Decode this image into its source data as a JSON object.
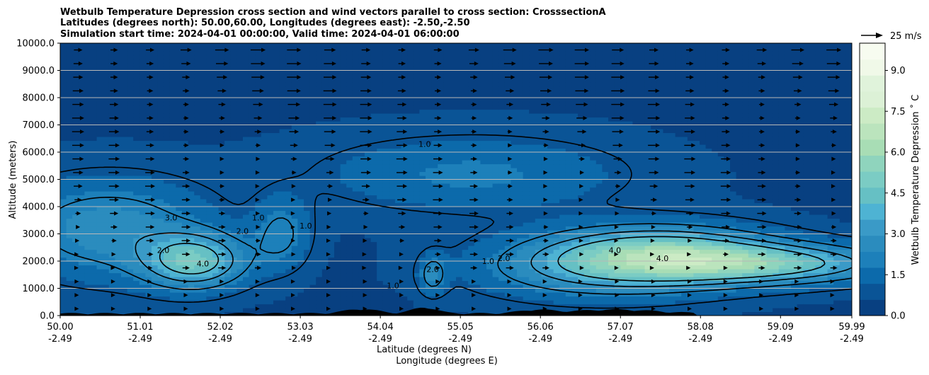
{
  "chart_data": {
    "type": "heatmap",
    "title": [
      "Wetbulb Temperature Depression cross section and wind vectors parallel to cross section: CrosssectionA",
      "Latitudes (degrees north): 50.00,60.00, Longitudes (degrees east): -2.50,-2.50",
      "Simulation start time: 2024-04-01 00:00:00, Valid time: 2024-04-01 06:00:00"
    ],
    "ylabel": "Altitude (meters)",
    "xlabel": "Latitude (degrees N)",
    "xlabel2": "Longitude (degrees E)",
    "colorbar_label": "Wetbulb Temperature Depression $^\\circ$C",
    "colorbar_label_display": "Wetbulb Temperature Depression ˚ C",
    "ylim": [
      0,
      10000
    ],
    "xlim": [
      50.0,
      59.99
    ],
    "y_ticks": [
      "0.0",
      "1000.0",
      "2000.0",
      "3000.0",
      "4000.0",
      "5000.0",
      "6000.0",
      "7000.0",
      "8000.0",
      "9000.0",
      "10000.0"
    ],
    "x_ticks_lat": [
      "50.00",
      "51.01",
      "52.02",
      "53.03",
      "54.04",
      "55.05",
      "56.06",
      "57.07",
      "58.08",
      "59.09",
      "59.99"
    ],
    "x_ticks_lon": [
      "-2.49",
      "-2.49",
      "-2.49",
      "-2.49",
      "-2.49",
      "-2.49",
      "-2.49",
      "-2.49",
      "-2.49",
      "-2.49",
      "-2.49"
    ],
    "colorbar_ticks": [
      "0.0",
      "1.5",
      "3.0",
      "4.5",
      "6.0",
      "7.5",
      "9.0"
    ],
    "colorbar_range": [
      0,
      10
    ],
    "quiver_key": "25 m/s",
    "contour_labels": [
      "1.0",
      "2.0",
      "3.0",
      "4.0"
    ],
    "grid": "horizontal",
    "colors": {
      "background": "#0a4e8c",
      "colormap": [
        "#084081",
        "#0a5496",
        "#0c6aab",
        "#1d80ba",
        "#2b8cbe",
        "#3a9ac7",
        "#4eb3d3",
        "#66c0c4",
        "#7bccc4",
        "#8fd4bd",
        "#a8ddb5",
        "#bbe4bd",
        "#ccebc5",
        "#dcf1d6",
        "#e0f3db",
        "#f0f9e8",
        "#f7fcf0"
      ]
    }
  }
}
